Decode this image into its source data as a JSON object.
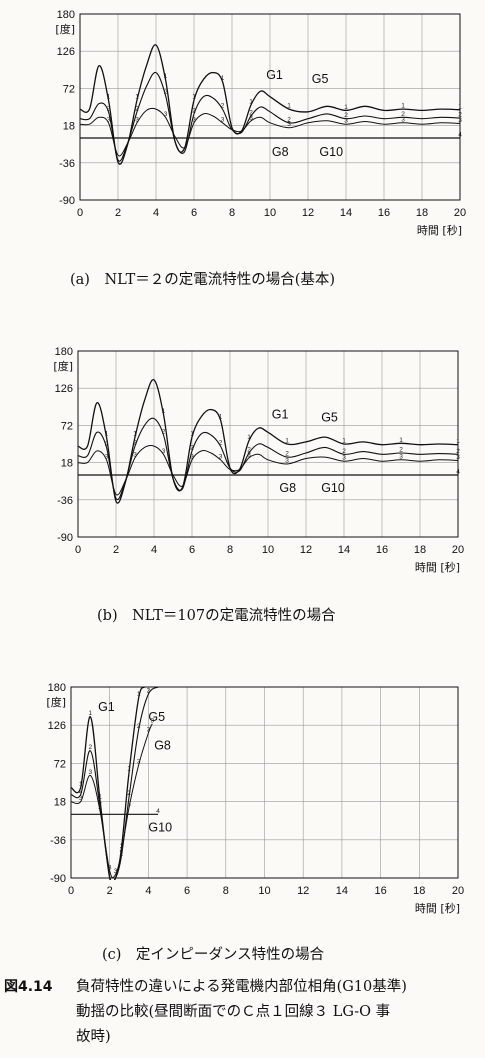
{
  "figure": {
    "number": "図4.14",
    "caption_lines": [
      "負荷特性の違いによる発電機内部位相角(G10基準)",
      "動揺の比較(昼間断面でのＣ点１回線３ LG-O 事",
      "故時)"
    ]
  },
  "chart_data": [
    {
      "type": "line",
      "caption": "(a)　NLT＝２の定電流特性の場合(基本)",
      "ylabel": "[度]",
      "xlabel": "時間 [秒]",
      "xlim": [
        0,
        20
      ],
      "ylim": [
        -90,
        180
      ],
      "yticks": [
        "180",
        "126",
        "72",
        "18",
        "-36",
        "-90"
      ],
      "xticks": [
        "0",
        "2",
        "4",
        "6",
        "8",
        "10",
        "12",
        "14",
        "16",
        "18",
        "20"
      ],
      "series": [
        {
          "name": "G1",
          "x": [
            0,
            0.5,
            1,
            1.5,
            2,
            2.5,
            3,
            3.5,
            4,
            4.5,
            5,
            5.5,
            6,
            6.5,
            7,
            7.5,
            8,
            8.5,
            9,
            9.5,
            10,
            11,
            12,
            13,
            14,
            15,
            16,
            17,
            18,
            19,
            20
          ],
          "values": [
            42,
            42,
            105,
            55,
            -35,
            -10,
            55,
            105,
            135,
            85,
            -5,
            -15,
            55,
            85,
            95,
            82,
            15,
            10,
            48,
            68,
            60,
            42,
            38,
            46,
            40,
            46,
            40,
            42,
            40,
            42,
            41
          ]
        },
        {
          "name": "G5",
          "x": [
            0,
            0.5,
            1,
            1.5,
            2,
            2.5,
            3,
            3.5,
            4,
            4.5,
            5,
            5.5,
            6,
            6.5,
            7,
            7.5,
            8,
            8.5,
            9,
            9.5,
            10,
            11,
            12,
            13,
            14,
            15,
            16,
            17,
            18,
            19,
            20
          ],
          "values": [
            28,
            28,
            50,
            38,
            -32,
            -8,
            38,
            75,
            95,
            62,
            -5,
            -20,
            35,
            60,
            58,
            42,
            12,
            8,
            32,
            45,
            38,
            22,
            28,
            35,
            28,
            32,
            28,
            30,
            28,
            30,
            29
          ]
        },
        {
          "name": "G8",
          "x": [
            0,
            0.5,
            1,
            1.5,
            2,
            2.5,
            3,
            3.5,
            4,
            4.5,
            5,
            5.5,
            6,
            6.5,
            7,
            7.5,
            8,
            8.5,
            9,
            9.5,
            10,
            11,
            12,
            13,
            14,
            15,
            16,
            17,
            18,
            19,
            20
          ],
          "values": [
            20,
            20,
            30,
            22,
            -25,
            -8,
            22,
            40,
            42,
            30,
            2,
            -14,
            22,
            35,
            32,
            22,
            12,
            10,
            25,
            30,
            22,
            15,
            22,
            25,
            20,
            24,
            20,
            22,
            20,
            22,
            21
          ]
        },
        {
          "name": "G10",
          "x": [
            0,
            20
          ],
          "values": [
            0,
            0
          ]
        }
      ],
      "series_labels": [
        {
          "name": "G1",
          "at": [
            9.8,
            86
          ]
        },
        {
          "name": "G5",
          "at": [
            12.2,
            80
          ]
        },
        {
          "name": "G8",
          "at": [
            10.1,
            -26
          ]
        },
        {
          "name": "G10",
          "at": [
            12.6,
            -26
          ]
        }
      ]
    },
    {
      "type": "line",
      "caption": "(b)　NLT＝107の定電流特性の場合",
      "ylabel": "[度]",
      "xlabel": "時間 [秒]",
      "xlim": [
        0,
        20
      ],
      "ylim": [
        -90,
        180
      ],
      "yticks": [
        "180",
        "126",
        "72",
        "18",
        "-36",
        "-90"
      ],
      "xticks": [
        "0",
        "2",
        "4",
        "6",
        "8",
        "10",
        "12",
        "14",
        "16",
        "18",
        "20"
      ],
      "series": [
        {
          "name": "G1",
          "x": [
            0,
            0.5,
            1,
            1.5,
            2,
            2.5,
            3,
            3.5,
            4,
            4.5,
            5,
            5.5,
            6,
            6.5,
            7,
            7.5,
            8,
            8.5,
            9,
            9.5,
            10,
            11,
            12,
            13,
            14,
            15,
            16,
            17,
            18,
            19,
            20
          ],
          "values": [
            42,
            42,
            105,
            55,
            -38,
            -10,
            55,
            108,
            138,
            88,
            -5,
            -18,
            55,
            85,
            95,
            80,
            10,
            8,
            50,
            68,
            62,
            45,
            48,
            55,
            45,
            48,
            44,
            46,
            44,
            45,
            44
          ]
        },
        {
          "name": "G5",
          "x": [
            0,
            0.5,
            1,
            1.5,
            2,
            2.5,
            3,
            3.5,
            4,
            4.5,
            5,
            5.5,
            6,
            6.5,
            7,
            7.5,
            8,
            8.5,
            9,
            9.5,
            10,
            11,
            12,
            13,
            14,
            15,
            16,
            17,
            18,
            19,
            20
          ],
          "values": [
            28,
            28,
            62,
            40,
            -34,
            -8,
            42,
            72,
            82,
            58,
            -5,
            -20,
            35,
            60,
            58,
            42,
            10,
            6,
            32,
            45,
            40,
            26,
            32,
            40,
            30,
            34,
            30,
            32,
            30,
            31,
            30
          ]
        },
        {
          "name": "G8",
          "x": [
            0,
            0.5,
            1,
            1.5,
            2,
            2.5,
            3,
            3.5,
            4,
            4.5,
            5,
            5.5,
            6,
            6.5,
            7,
            7.5,
            8,
            8.5,
            9,
            9.5,
            10,
            11,
            12,
            13,
            14,
            15,
            16,
            17,
            18,
            19,
            20
          ],
          "values": [
            18,
            18,
            35,
            22,
            -28,
            -8,
            25,
            40,
            42,
            30,
            0,
            -16,
            22,
            35,
            32,
            22,
            8,
            8,
            25,
            30,
            22,
            16,
            24,
            26,
            20,
            24,
            20,
            22,
            20,
            22,
            21
          ]
        },
        {
          "name": "G10",
          "x": [
            0,
            20
          ],
          "values": [
            0,
            0
          ]
        }
      ],
      "series_labels": [
        {
          "name": "G1",
          "at": [
            10.2,
            82
          ]
        },
        {
          "name": "G5",
          "at": [
            12.8,
            78
          ]
        },
        {
          "name": "G8",
          "at": [
            10.6,
            -25
          ]
        },
        {
          "name": "G10",
          "at": [
            12.8,
            -25
          ]
        }
      ]
    },
    {
      "type": "line",
      "caption": "(c)　定インピーダンス特性の場合",
      "ylabel": "[度]",
      "xlabel": "時間 [秒]",
      "xlim": [
        0,
        20
      ],
      "ylim": [
        -90,
        180
      ],
      "yticks": [
        "180",
        "126",
        "72",
        "18",
        "-36",
        "-90"
      ],
      "xticks": [
        "0",
        "2",
        "4",
        "6",
        "8",
        "10",
        "12",
        "14",
        "16",
        "18",
        "20"
      ],
      "series": [
        {
          "name": "G1",
          "x": [
            0,
            0.5,
            1,
            1.5,
            2,
            2.3,
            2.6,
            3,
            3.5,
            3.8
          ],
          "values": [
            38,
            38,
            138,
            20,
            -90,
            -90,
            -50,
            60,
            165,
            180
          ]
        },
        {
          "name": "G5",
          "x": [
            0,
            0.5,
            1,
            1.5,
            2,
            2.3,
            2.6,
            3,
            3.5,
            4,
            4.5
          ],
          "values": [
            28,
            28,
            90,
            10,
            -88,
            -90,
            -60,
            25,
            120,
            170,
            180
          ]
        },
        {
          "name": "G8",
          "x": [
            0,
            0.5,
            1,
            1.5,
            2,
            2.3,
            2.6,
            3,
            3.5,
            4,
            4.2
          ],
          "values": [
            18,
            18,
            55,
            5,
            -80,
            -85,
            -55,
            10,
            70,
            115,
            128
          ]
        },
        {
          "name": "G10",
          "x": [
            0,
            4.5
          ],
          "values": [
            0,
            0
          ]
        }
      ],
      "series_labels": [
        {
          "name": "G1",
          "at": [
            1.4,
            146
          ]
        },
        {
          "name": "G5",
          "at": [
            4.0,
            132
          ]
        },
        {
          "name": "G8",
          "at": [
            4.3,
            92
          ]
        },
        {
          "name": "G10",
          "at": [
            4.0,
            -24
          ]
        }
      ]
    }
  ]
}
